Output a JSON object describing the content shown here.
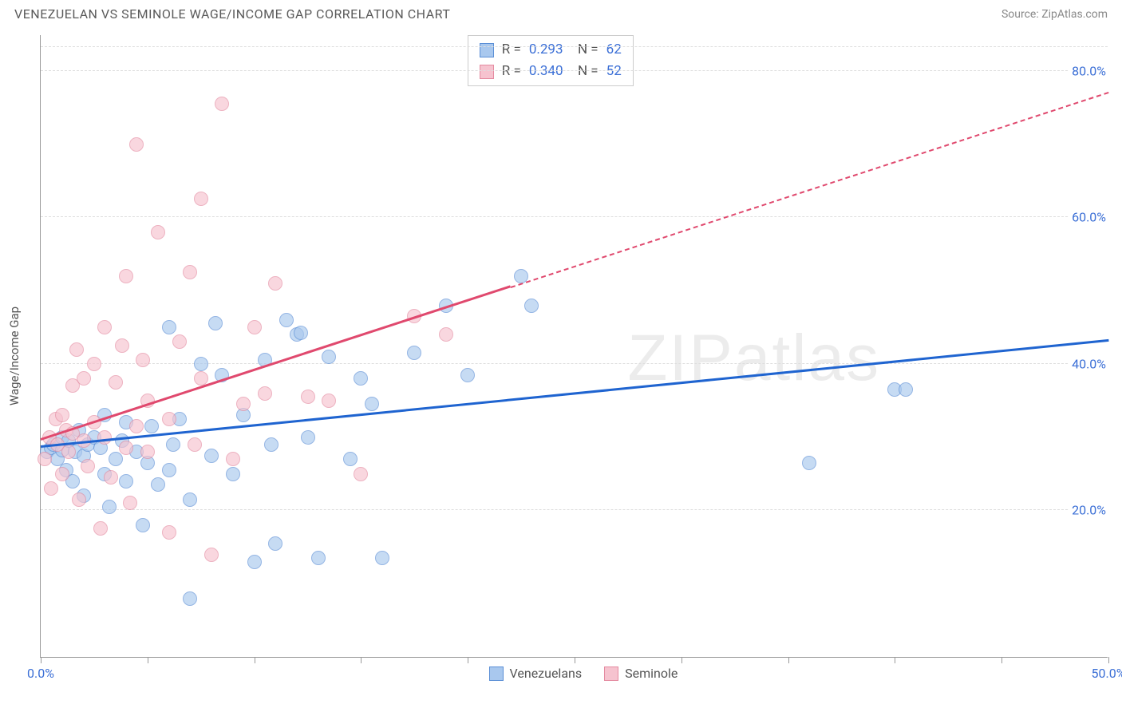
{
  "header": {
    "title": "VENEZUELAN VS SEMINOLE WAGE/INCOME GAP CORRELATION CHART",
    "source": "Source: ZipAtlas.com"
  },
  "watermark": "ZIPatlas",
  "chart": {
    "type": "scatter",
    "ylabel": "Wage/Income Gap",
    "background_color": "#ffffff",
    "grid_color": "#dddddd",
    "axis_color": "#999999",
    "tick_label_color": "#3b6fd6",
    "label_fontsize": 15,
    "xlim": [
      0,
      50
    ],
    "ylim": [
      0,
      85
    ],
    "xtick_positions": [
      0,
      5,
      10,
      15,
      20,
      25,
      30,
      35,
      40,
      45,
      50
    ],
    "xtick_labels": {
      "0": "0.0%",
      "50": "50.0%"
    },
    "ytick_positions": [
      20,
      40,
      60,
      80
    ],
    "ytick_labels": {
      "20": "20.0%",
      "40": "40.0%",
      "60": "60.0%",
      "80": "80.0%"
    },
    "marker_radius": 9,
    "marker_opacity": 0.65,
    "series": [
      {
        "name": "Venezuelans",
        "fill_color": "#a9c8ee",
        "stroke_color": "#5b8fd6",
        "trend_color": "#1f64d0",
        "trend_width": 3,
        "R": "0.293",
        "N": "62",
        "trend": {
          "x1": 0,
          "y1": 28.5,
          "x2": 50,
          "y2": 43.0,
          "dash_from_x": null
        },
        "points": [
          [
            0.3,
            28.0
          ],
          [
            0.5,
            28.5
          ],
          [
            0.6,
            29.0
          ],
          [
            0.8,
            27.0
          ],
          [
            1.0,
            28.2
          ],
          [
            1.0,
            30.0
          ],
          [
            1.2,
            25.5
          ],
          [
            1.3,
            29.5
          ],
          [
            1.5,
            24.0
          ],
          [
            1.6,
            28.0
          ],
          [
            1.8,
            31.0
          ],
          [
            2.0,
            27.5
          ],
          [
            2.0,
            22.0
          ],
          [
            2.2,
            29.0
          ],
          [
            2.5,
            30.0
          ],
          [
            2.8,
            28.5
          ],
          [
            3.0,
            25.0
          ],
          [
            3.0,
            33.0
          ],
          [
            3.2,
            20.5
          ],
          [
            3.5,
            27.0
          ],
          [
            3.8,
            29.5
          ],
          [
            4.0,
            32.0
          ],
          [
            4.0,
            24.0
          ],
          [
            4.5,
            28.0
          ],
          [
            4.8,
            18.0
          ],
          [
            5.0,
            26.5
          ],
          [
            5.2,
            31.5
          ],
          [
            5.5,
            23.5
          ],
          [
            6.0,
            45.0
          ],
          [
            6.0,
            25.5
          ],
          [
            6.2,
            29.0
          ],
          [
            6.5,
            32.5
          ],
          [
            7.0,
            8.0
          ],
          [
            7.0,
            21.5
          ],
          [
            7.5,
            40.0
          ],
          [
            8.0,
            27.5
          ],
          [
            8.2,
            45.5
          ],
          [
            8.5,
            38.5
          ],
          [
            9.0,
            25.0
          ],
          [
            9.5,
            33.0
          ],
          [
            10.0,
            13.0
          ],
          [
            10.5,
            40.5
          ],
          [
            10.8,
            29.0
          ],
          [
            11.0,
            15.5
          ],
          [
            11.5,
            46.0
          ],
          [
            12.0,
            44.0
          ],
          [
            12.2,
            44.2
          ],
          [
            12.5,
            30.0
          ],
          [
            13.0,
            13.5
          ],
          [
            13.5,
            41.0
          ],
          [
            14.5,
            27.0
          ],
          [
            15.0,
            38.0
          ],
          [
            15.5,
            34.5
          ],
          [
            16.0,
            13.5
          ],
          [
            17.5,
            41.5
          ],
          [
            19.0,
            48.0
          ],
          [
            20.0,
            38.5
          ],
          [
            22.5,
            52.0
          ],
          [
            23.0,
            48.0
          ],
          [
            36.0,
            26.5
          ],
          [
            40.0,
            36.5
          ],
          [
            40.5,
            36.5
          ]
        ]
      },
      {
        "name": "Seminole",
        "fill_color": "#f6c3cf",
        "stroke_color": "#e48aa0",
        "trend_color": "#e0496e",
        "trend_width": 3,
        "R": "0.340",
        "N": "52",
        "trend": {
          "x1": 0,
          "y1": 29.5,
          "x2": 50,
          "y2": 77.0,
          "dash_from_x": 22
        },
        "points": [
          [
            0.2,
            27.0
          ],
          [
            0.4,
            30.0
          ],
          [
            0.5,
            23.0
          ],
          [
            0.7,
            32.5
          ],
          [
            0.8,
            29.0
          ],
          [
            1.0,
            33.0
          ],
          [
            1.0,
            25.0
          ],
          [
            1.2,
            31.0
          ],
          [
            1.3,
            28.0
          ],
          [
            1.5,
            30.5
          ],
          [
            1.5,
            37.0
          ],
          [
            1.7,
            42.0
          ],
          [
            1.8,
            21.5
          ],
          [
            2.0,
            29.5
          ],
          [
            2.0,
            38.0
          ],
          [
            2.2,
            26.0
          ],
          [
            2.5,
            32.0
          ],
          [
            2.5,
            40.0
          ],
          [
            2.8,
            17.5
          ],
          [
            3.0,
            30.0
          ],
          [
            3.0,
            45.0
          ],
          [
            3.3,
            24.5
          ],
          [
            3.5,
            37.5
          ],
          [
            3.8,
            42.5
          ],
          [
            4.0,
            28.5
          ],
          [
            4.0,
            52.0
          ],
          [
            4.2,
            21.0
          ],
          [
            4.5,
            31.5
          ],
          [
            4.5,
            70.0
          ],
          [
            4.8,
            40.5
          ],
          [
            5.0,
            28.0
          ],
          [
            5.0,
            35.0
          ],
          [
            5.5,
            58.0
          ],
          [
            6.0,
            17.0
          ],
          [
            6.0,
            32.5
          ],
          [
            6.5,
            43.0
          ],
          [
            7.0,
            52.5
          ],
          [
            7.2,
            29.0
          ],
          [
            7.5,
            38.0
          ],
          [
            7.5,
            62.5
          ],
          [
            8.0,
            14.0
          ],
          [
            8.5,
            75.5
          ],
          [
            9.0,
            27.0
          ],
          [
            9.5,
            34.5
          ],
          [
            10.0,
            45.0
          ],
          [
            10.5,
            36.0
          ],
          [
            11.0,
            51.0
          ],
          [
            12.5,
            35.5
          ],
          [
            13.5,
            35.0
          ],
          [
            15.0,
            25.0
          ],
          [
            17.5,
            46.5
          ],
          [
            19.0,
            44.0
          ]
        ]
      }
    ]
  }
}
